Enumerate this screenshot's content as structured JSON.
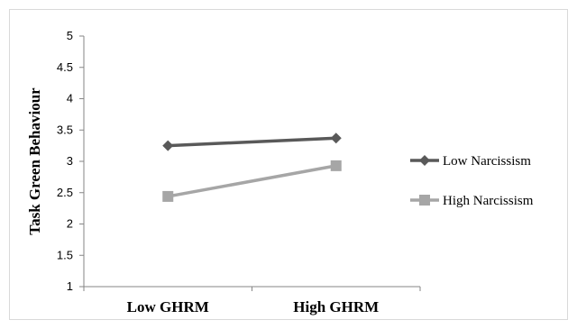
{
  "chart_data": {
    "type": "line",
    "categories": [
      "Low GHRM",
      "High GHRM"
    ],
    "series": [
      {
        "name": "Low Narcissism",
        "values": [
          3.25,
          3.37
        ],
        "color": "#595959",
        "marker": "diamond"
      },
      {
        "name": "High Narcissism",
        "values": [
          2.44,
          2.93
        ],
        "color": "#a6a6a6",
        "marker": "square"
      }
    ],
    "title": "",
    "xlabel": "",
    "ylabel": "Task Green Behaviour",
    "ylim": [
      1,
      5
    ],
    "yticks": [
      "1",
      "1.5",
      "2",
      "2.5",
      "3",
      "3.5",
      "4",
      "4.5",
      "5"
    ],
    "grid": false,
    "legend_position": "right"
  }
}
